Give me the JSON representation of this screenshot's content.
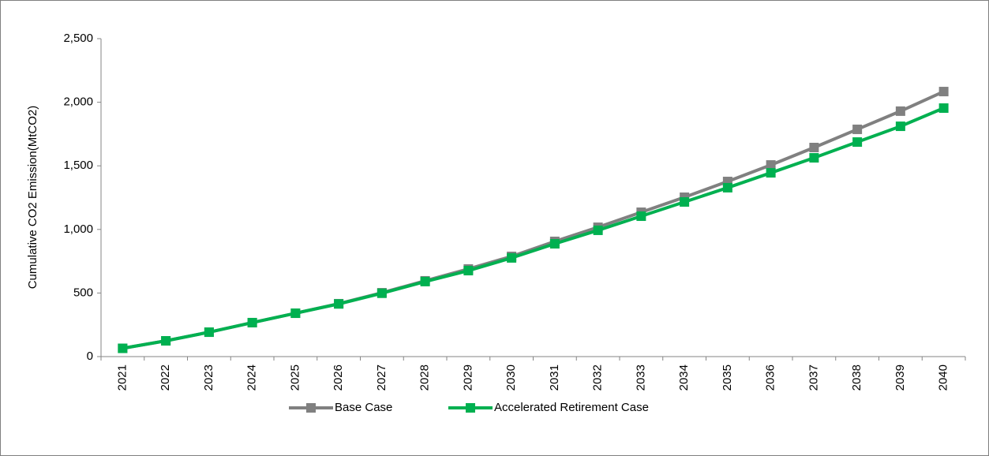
{
  "chart_data": {
    "type": "line",
    "y_label": "Cumulative CO2 Emission(MtCO2)",
    "categories": [
      "2021",
      "2022",
      "2023",
      "2024",
      "2025",
      "2026",
      "2027",
      "2028",
      "2029",
      "2030",
      "2031",
      "2032",
      "2033",
      "2034",
      "2035",
      "2036",
      "2037",
      "2038",
      "2039",
      "2040"
    ],
    "series": [
      {
        "name": "Base Case",
        "color": "#808080",
        "values": [
          65,
          124,
          192,
          267,
          341,
          416,
          502,
          596,
          689,
          788,
          906,
          1017,
          1135,
          1253,
          1377,
          1507,
          1644,
          1787,
          1930,
          2084
        ]
      },
      {
        "name": "Accelerated Retirement Case",
        "color": "#00b050",
        "values": [
          65,
          124,
          192,
          267,
          341,
          414,
          498,
          590,
          676,
          776,
          887,
          993,
          1104,
          1216,
          1328,
          1445,
          1563,
          1687,
          1811,
          1954
        ]
      }
    ],
    "ylim": [
      0,
      2500
    ],
    "yticks": [
      0,
      500,
      {
        "value": 1000,
        "label": "1,000"
      },
      {
        "value": 1500,
        "label": "1,500"
      },
      {
        "value": 2000,
        "label": "2,000"
      },
      {
        "value": 2500,
        "label": "2,500"
      }
    ],
    "grid": false,
    "legend": "bottom"
  }
}
